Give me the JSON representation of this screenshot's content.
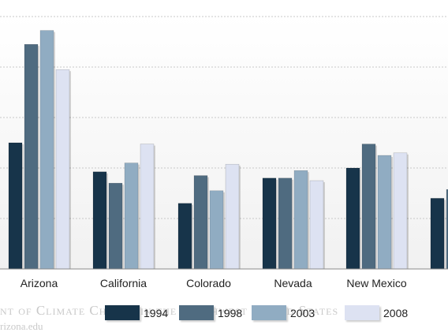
{
  "footer": {
    "title": "nt of Climate Change in the Southwest United States",
    "url": "rizona.edu"
  },
  "chart_data": {
    "type": "bar",
    "categories": [
      "Arizona",
      "California",
      "Colorado",
      "Nevada",
      "New Mexico",
      ""
    ],
    "ylim": [
      0,
      100
    ],
    "grid": true,
    "legend_placement": "bottom",
    "series": [
      {
        "name": "1994",
        "color": "#17344a",
        "values": [
          50,
          38.5,
          26,
          36,
          40,
          28
        ]
      },
      {
        "name": "1998",
        "color": "#4f6b80",
        "values": [
          89,
          34,
          37,
          36,
          49.5,
          31.5
        ]
      },
      {
        "name": "2003",
        "color": "#90acc2",
        "values": [
          94.5,
          42,
          31,
          39,
          45,
          0
        ]
      },
      {
        "name": "2008",
        "color": "#dde2f2",
        "values": [
          79,
          49.5,
          41.5,
          35,
          46,
          0
        ]
      }
    ]
  }
}
